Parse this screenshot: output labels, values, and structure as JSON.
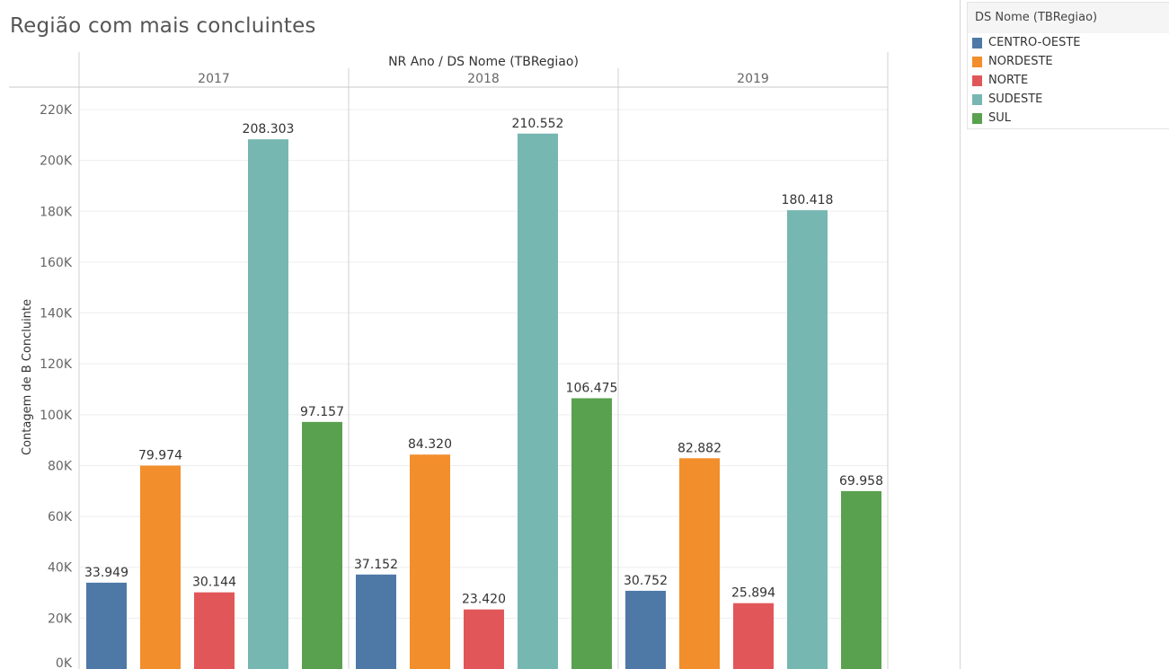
{
  "title": "Região com mais concluintes",
  "legend": {
    "title": "DS Nome (TBRegiao)",
    "items": [
      {
        "label": "CENTRO-OESTE",
        "color": "#4e79a7"
      },
      {
        "label": "NORDESTE",
        "color": "#f28e2b"
      },
      {
        "label": "NORTE",
        "color": "#e15759"
      },
      {
        "label": "SUDESTE",
        "color": "#76b7b2"
      },
      {
        "label": "SUL",
        "color": "#59a14f"
      }
    ]
  },
  "chart_data": {
    "type": "bar",
    "title": "Região com mais concluintes",
    "column_header": "NR Ano  /  DS Nome (TBRegiao)",
    "ylabel": "Contagem de B Concluinte",
    "ylim": [
      0,
      220000
    ],
    "yticks": [
      0,
      20000,
      40000,
      60000,
      80000,
      100000,
      120000,
      140000,
      160000,
      180000,
      200000,
      220000
    ],
    "ytick_labels": [
      "0K",
      "20K",
      "40K",
      "60K",
      "80K",
      "100K",
      "120K",
      "140K",
      "160K",
      "180K",
      "200K",
      "220K"
    ],
    "grid": true,
    "legend_position": "top-right",
    "categories": [
      "CENTRO-OESTE",
      "NORDESTE",
      "NORTE",
      "SUDESTE",
      "SUL"
    ],
    "colors": [
      "#4e79a7",
      "#f28e2b",
      "#e15759",
      "#76b7b2",
      "#59a14f"
    ],
    "panels": [
      {
        "year": "2017",
        "values": [
          33949,
          79974,
          30144,
          208303,
          97157
        ],
        "labels": [
          "33.949",
          "79.974",
          "30.144",
          "208.303",
          "97.157"
        ]
      },
      {
        "year": "2018",
        "values": [
          37152,
          84320,
          23420,
          210552,
          106475
        ],
        "labels": [
          "37.152",
          "84.320",
          "23.420",
          "210.552",
          "106.475"
        ]
      },
      {
        "year": "2019",
        "values": [
          30752,
          82882,
          25894,
          180418,
          69958
        ],
        "labels": [
          "30.752",
          "82.882",
          "25.894",
          "180.418",
          "69.958"
        ]
      }
    ]
  }
}
